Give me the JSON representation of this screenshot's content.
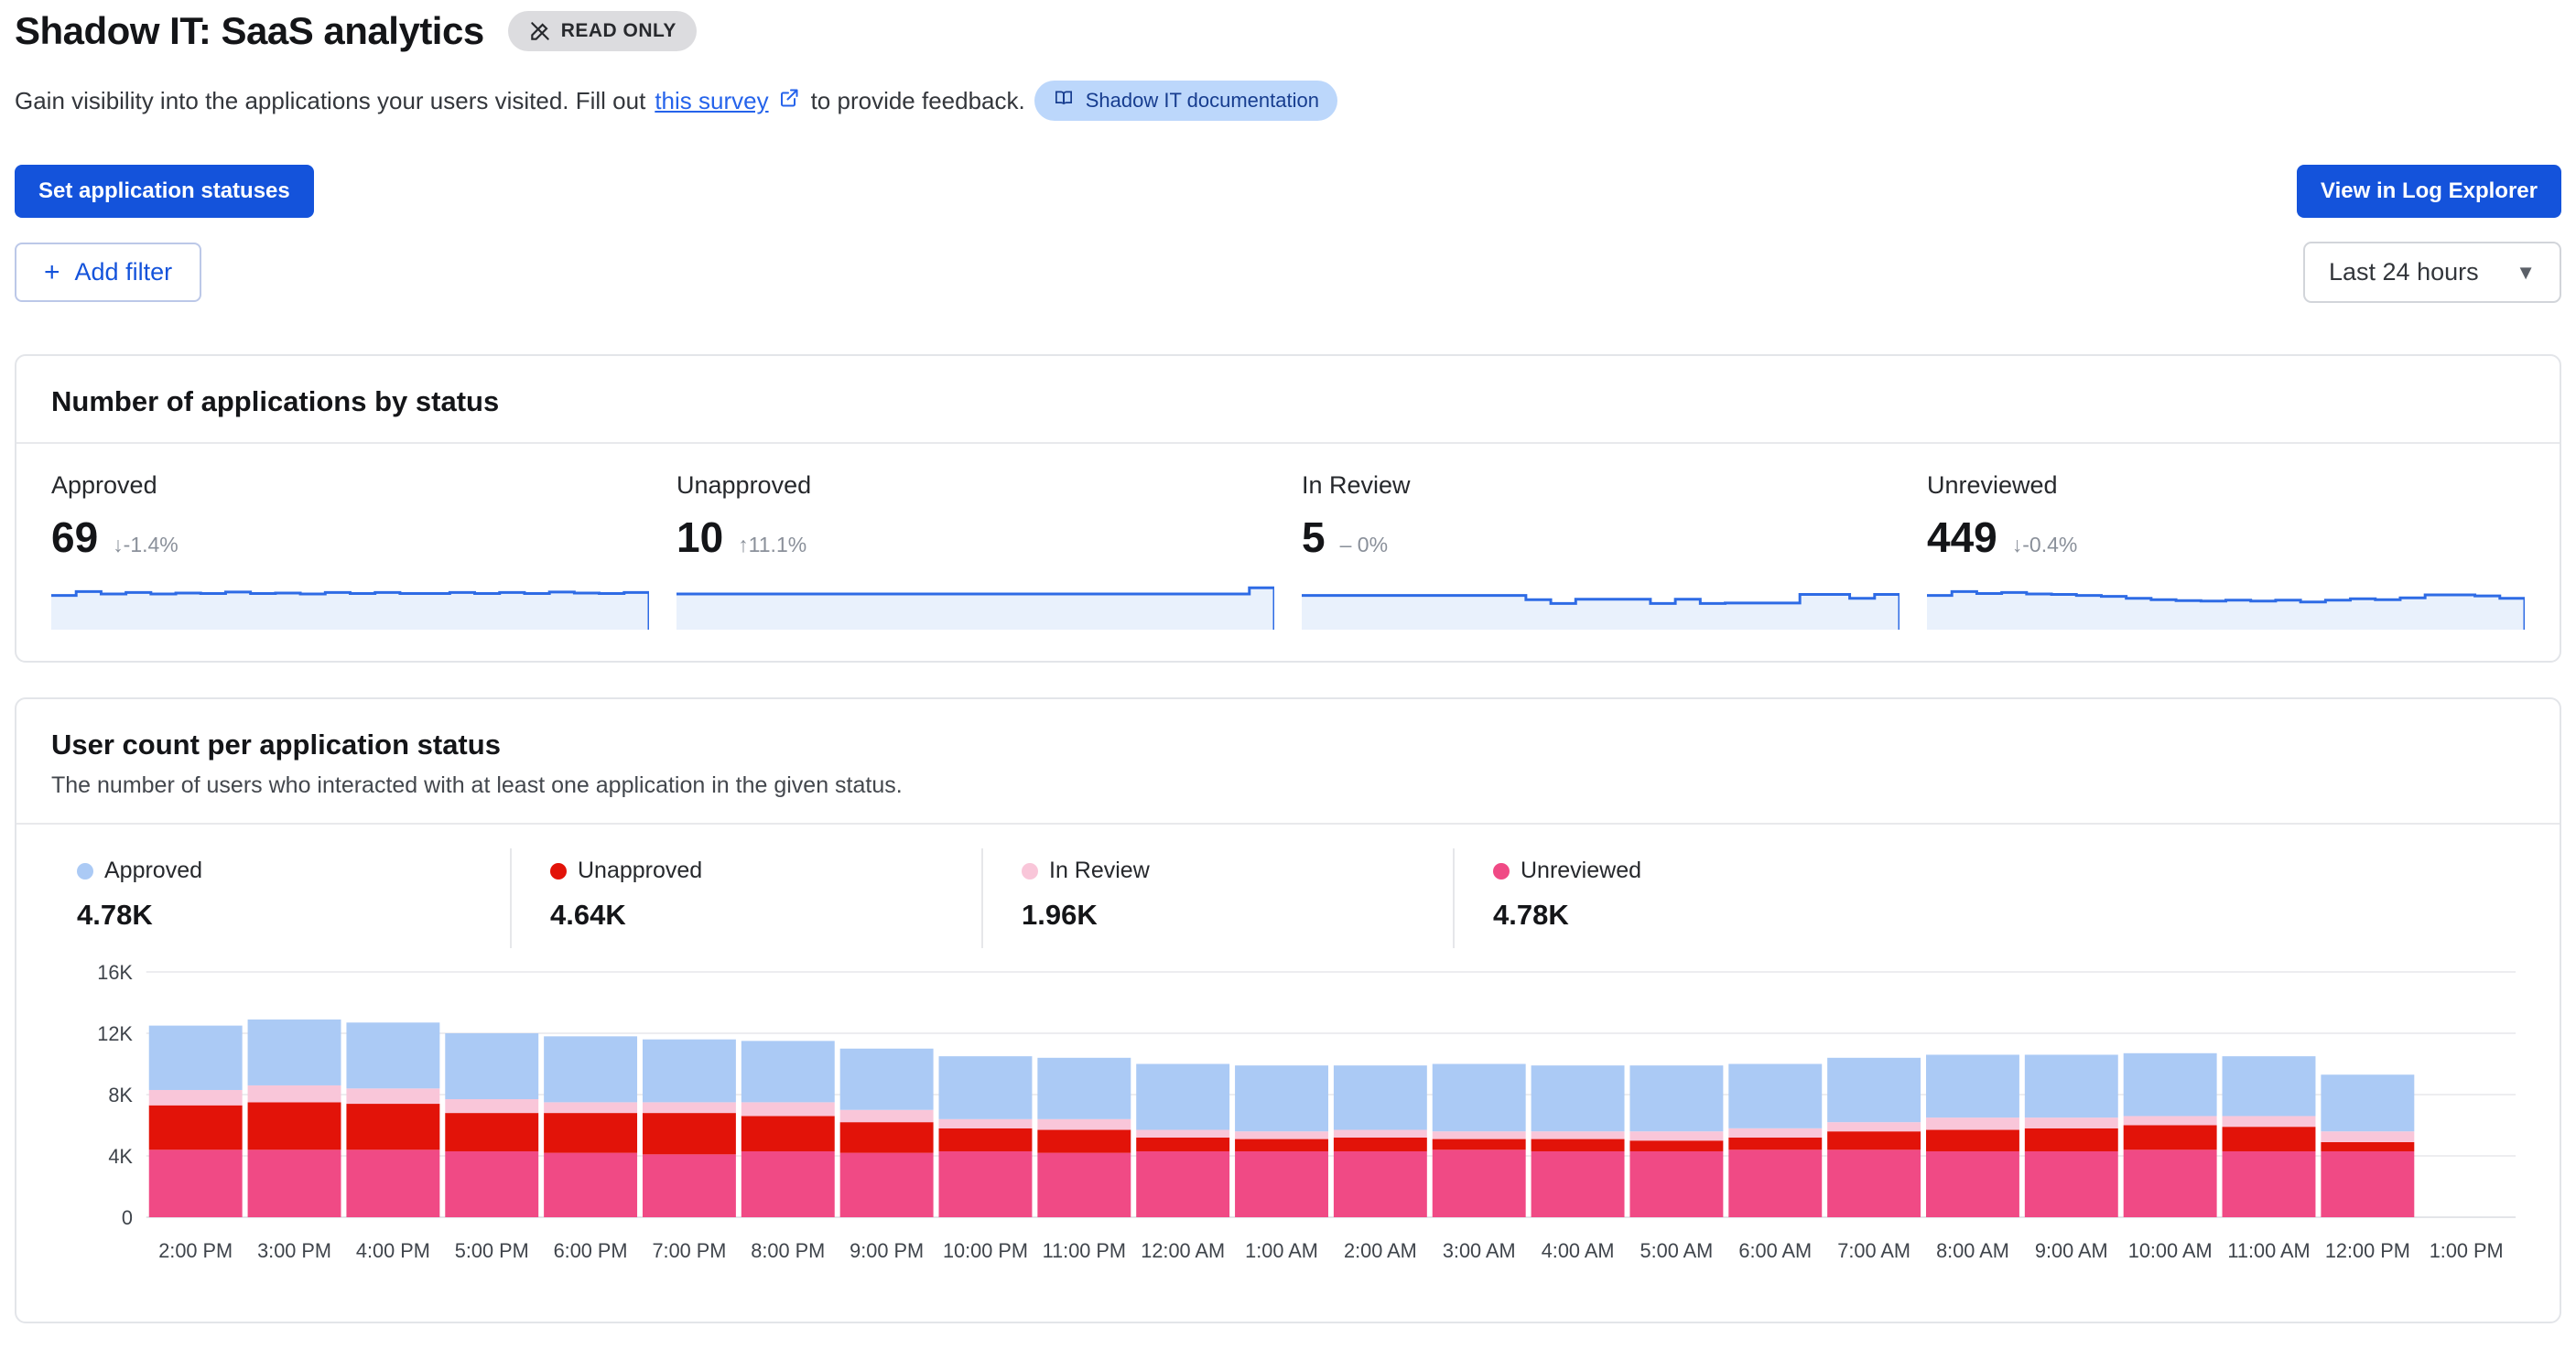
{
  "header": {
    "title": "Shadow IT: SaaS analytics",
    "read_only_badge": "READ ONLY",
    "description_prefix": "Gain visibility into the applications your users visited.  Fill out",
    "survey_link": "this survey",
    "description_suffix": "to provide feedback.",
    "doc_pill": "Shadow IT documentation"
  },
  "toolbar": {
    "set_statuses": "Set application statuses",
    "view_log_explorer": "View in Log Explorer",
    "add_filter": "Add filter",
    "time_range": "Last 24 hours"
  },
  "colors": {
    "primary_blue": "#1453db",
    "link_blue": "#2563eb",
    "pill_bg": "#bcd7fb",
    "pill_text": "#173d8f",
    "badge_bg": "#dcdcdf",
    "spark_line": "#2e6be5",
    "spark_fill": "#e9f1fc",
    "approved": "#abcaf5",
    "unapproved": "#e21309",
    "in_review": "#f9c6d9",
    "unreviewed": "#f04a85"
  },
  "apps_card": {
    "title": "Number of applications by status",
    "stats": [
      {
        "label": "Approved",
        "value": "69",
        "delta": "↓-1.4%",
        "spark": [
          0.72,
          0.8,
          0.75,
          0.78,
          0.75,
          0.77,
          0.76,
          0.79,
          0.76,
          0.77,
          0.75,
          0.78,
          0.76,
          0.78,
          0.76,
          0.76,
          0.78,
          0.76,
          0.78,
          0.76,
          0.79,
          0.77,
          0.76,
          0.78
        ]
      },
      {
        "label": "Unapproved",
        "value": "10",
        "delta": "↑11.1%",
        "spark": [
          0.75,
          0.75,
          0.75,
          0.75,
          0.75,
          0.75,
          0.75,
          0.75,
          0.75,
          0.75,
          0.75,
          0.75,
          0.75,
          0.75,
          0.75,
          0.75,
          0.75,
          0.75,
          0.75,
          0.75,
          0.75,
          0.75,
          0.75,
          0.88
        ]
      },
      {
        "label": "In Review",
        "value": "5",
        "delta": "– 0%",
        "spark": [
          0.72,
          0.72,
          0.72,
          0.72,
          0.72,
          0.72,
          0.72,
          0.72,
          0.72,
          0.63,
          0.55,
          0.64,
          0.64,
          0.64,
          0.55,
          0.64,
          0.55,
          0.56,
          0.56,
          0.56,
          0.74,
          0.74,
          0.66,
          0.74
        ]
      },
      {
        "label": "Unreviewed",
        "value": "449",
        "delta": "↓-0.4%",
        "spark": [
          0.72,
          0.8,
          0.76,
          0.78,
          0.75,
          0.74,
          0.72,
          0.7,
          0.66,
          0.63,
          0.61,
          0.6,
          0.62,
          0.6,
          0.62,
          0.58,
          0.62,
          0.65,
          0.63,
          0.67,
          0.73,
          0.73,
          0.71,
          0.66
        ]
      }
    ]
  },
  "users_card": {
    "title": "User count per application status",
    "subtitle": "The number of users who interacted with at least one application in the given status.",
    "legend": [
      {
        "label": "Approved",
        "value": "4.78K",
        "color": "#abcaf5"
      },
      {
        "label": "Unapproved",
        "value": "4.64K",
        "color": "#e21309"
      },
      {
        "label": "In Review",
        "value": "1.96K",
        "color": "#f9c6d9"
      },
      {
        "label": "Unreviewed",
        "value": "4.78K",
        "color": "#f04a85"
      }
    ]
  },
  "chart_data": {
    "type": "bar",
    "stacked": true,
    "title": "User count per application status",
    "categories": [
      "2:00 PM",
      "3:00 PM",
      "4:00 PM",
      "5:00 PM",
      "6:00 PM",
      "7:00 PM",
      "8:00 PM",
      "9:00 PM",
      "10:00 PM",
      "11:00 PM",
      "12:00 AM",
      "1:00 AM",
      "2:00 AM",
      "3:00 AM",
      "4:00 AM",
      "5:00 AM",
      "6:00 AM",
      "7:00 AM",
      "8:00 AM",
      "9:00 AM",
      "10:00 AM",
      "11:00 AM",
      "12:00 PM",
      "1:00 PM"
    ],
    "unit": "thousands of users",
    "ylim": [
      0,
      16000
    ],
    "ytick_labels": [
      "0",
      "4K",
      "8K",
      "12K",
      "16K"
    ],
    "grid": true,
    "legend_position": "top",
    "series": [
      {
        "name": "Unreviewed",
        "color": "#f04a85",
        "values": [
          4.4,
          4.4,
          4.4,
          4.3,
          4.2,
          4.1,
          4.3,
          4.2,
          4.3,
          4.2,
          4.3,
          4.3,
          4.3,
          4.4,
          4.3,
          4.3,
          4.4,
          4.4,
          4.3,
          4.3,
          4.4,
          4.3,
          4.3,
          0
        ]
      },
      {
        "name": "Unapproved",
        "color": "#e21309",
        "values": [
          2.9,
          3.1,
          3.0,
          2.5,
          2.6,
          2.7,
          2.3,
          2.0,
          1.5,
          1.5,
          0.9,
          0.8,
          0.9,
          0.7,
          0.8,
          0.7,
          0.8,
          1.2,
          1.4,
          1.5,
          1.6,
          1.6,
          0.6,
          0
        ]
      },
      {
        "name": "In Review",
        "color": "#f9c6d9",
        "values": [
          1.0,
          1.1,
          1.0,
          0.9,
          0.7,
          0.7,
          0.9,
          0.8,
          0.6,
          0.7,
          0.5,
          0.5,
          0.5,
          0.5,
          0.5,
          0.6,
          0.6,
          0.6,
          0.8,
          0.7,
          0.6,
          0.7,
          0.7,
          0
        ]
      },
      {
        "name": "Approved",
        "color": "#abcaf5",
        "values": [
          4.2,
          4.3,
          4.3,
          4.3,
          4.3,
          4.1,
          4.0,
          4.0,
          4.1,
          4.0,
          4.3,
          4.3,
          4.2,
          4.4,
          4.3,
          4.3,
          4.2,
          4.2,
          4.1,
          4.1,
          4.1,
          3.9,
          3.7,
          0
        ]
      }
    ]
  }
}
